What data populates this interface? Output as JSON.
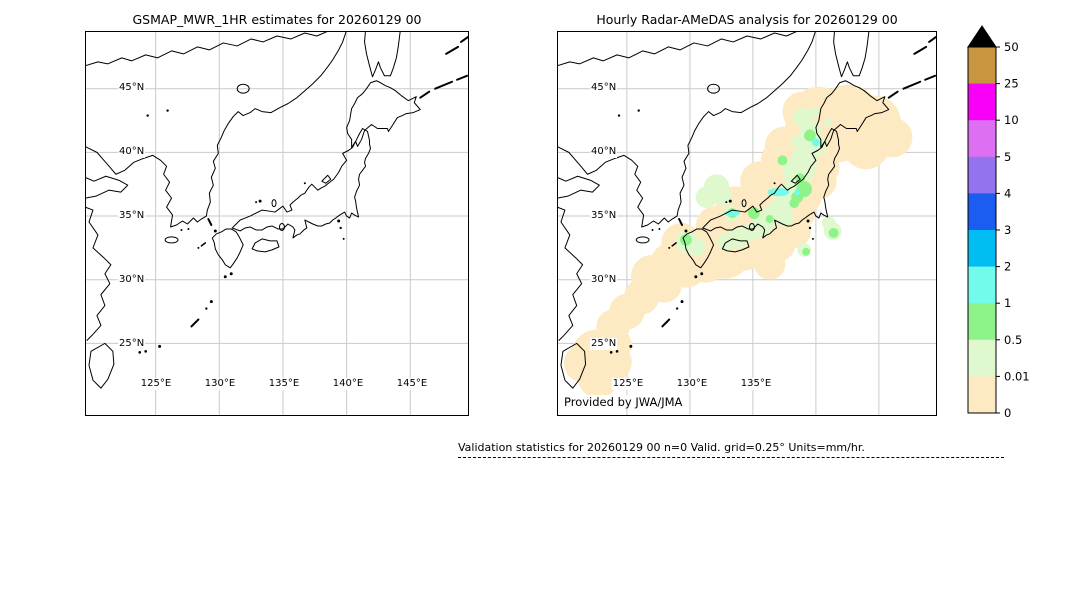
{
  "panels": [
    {
      "title": "GSMAP_MWR_1HR estimates for 20260129 00",
      "lat_labels": [
        "45°N",
        "40°N",
        "35°N",
        "30°N",
        "25°N"
      ],
      "lon_labels": [
        "125°E",
        "130°E",
        "135°E",
        "140°E",
        "145°E"
      ]
    },
    {
      "title": "Hourly Radar-AMeDAS analysis for 20260129 00",
      "lat_labels": [
        "45°N",
        "40°N",
        "35°N",
        "30°N",
        "25°N"
      ],
      "lon_labels": [
        "125°E",
        "130°E",
        "135°E"
      ],
      "credit": "Provided by JWA/JMA"
    }
  ],
  "colorbar": {
    "levels": [
      "50",
      "25",
      "10",
      "5",
      "4",
      "3",
      "2",
      "1",
      "0.5",
      "0.01",
      "0"
    ],
    "colors": [
      "#c9953f",
      "#f800f8",
      "#dd6ff2",
      "#9473f0",
      "#1a5df0",
      "#00bdf2",
      "#72fbea",
      "#8ef489",
      "#dff8cd",
      "#fdeac3"
    ],
    "over_color": "#000000"
  },
  "footer": {
    "validation_text": "Validation statistics for 20260129 00  n=0 Valid. grid=0.25° Units=mm/hr."
  },
  "chart_data": [
    {
      "type": "heatmap",
      "title": "GSMAP_MWR_1HR estimates for 20260129 00",
      "region": {
        "lon_range": [
          119.5,
          149.5
        ],
        "lat_range": [
          19.5,
          49.5
        ]
      },
      "lon_ticks": [
        125,
        130,
        135,
        140,
        145
      ],
      "lat_ticks": [
        25,
        30,
        35,
        40,
        45
      ],
      "grid": true,
      "units": "mm/hr",
      "values": "empty field - no GSMaP MWR precipitation estimates shaded (n=0)"
    },
    {
      "type": "heatmap",
      "title": "Hourly Radar-AMeDAS analysis for 20260129 00",
      "region": {
        "lon_range": [
          120,
          149.2
        ],
        "lat_range": [
          19.5,
          49.5
        ]
      },
      "lon_ticks": [
        125,
        130,
        135
      ],
      "lat_ticks": [
        25,
        30,
        35,
        40,
        45
      ],
      "grid": true,
      "units": "mm/hr",
      "levels_mm_hr": [
        0,
        0.01,
        0.5,
        1,
        2,
        3,
        4,
        5,
        10,
        25,
        50
      ],
      "level_colors_bottom_to_top": [
        "#fdeac3",
        "#dff8cd",
        "#8ef489",
        "#72fbea",
        "#00bdf2",
        "#1a5df0",
        "#9473f0",
        "#dd6ff2",
        "#f800f8",
        "#c9953f"
      ],
      "description": "Broad 0-0.01 mm/hr band covering the Japan archipelago from Hokkaido southwest along the Ryukyu island chain; 0.01-1 mm/hr green patches along the Sea of Japan coast of Honshu and southern Hokkaido; isolated 1-2 mm/hr cyan cells near Noto/Sado and Hakodate.",
      "credit": "Provided by JWA/JMA"
    }
  ]
}
